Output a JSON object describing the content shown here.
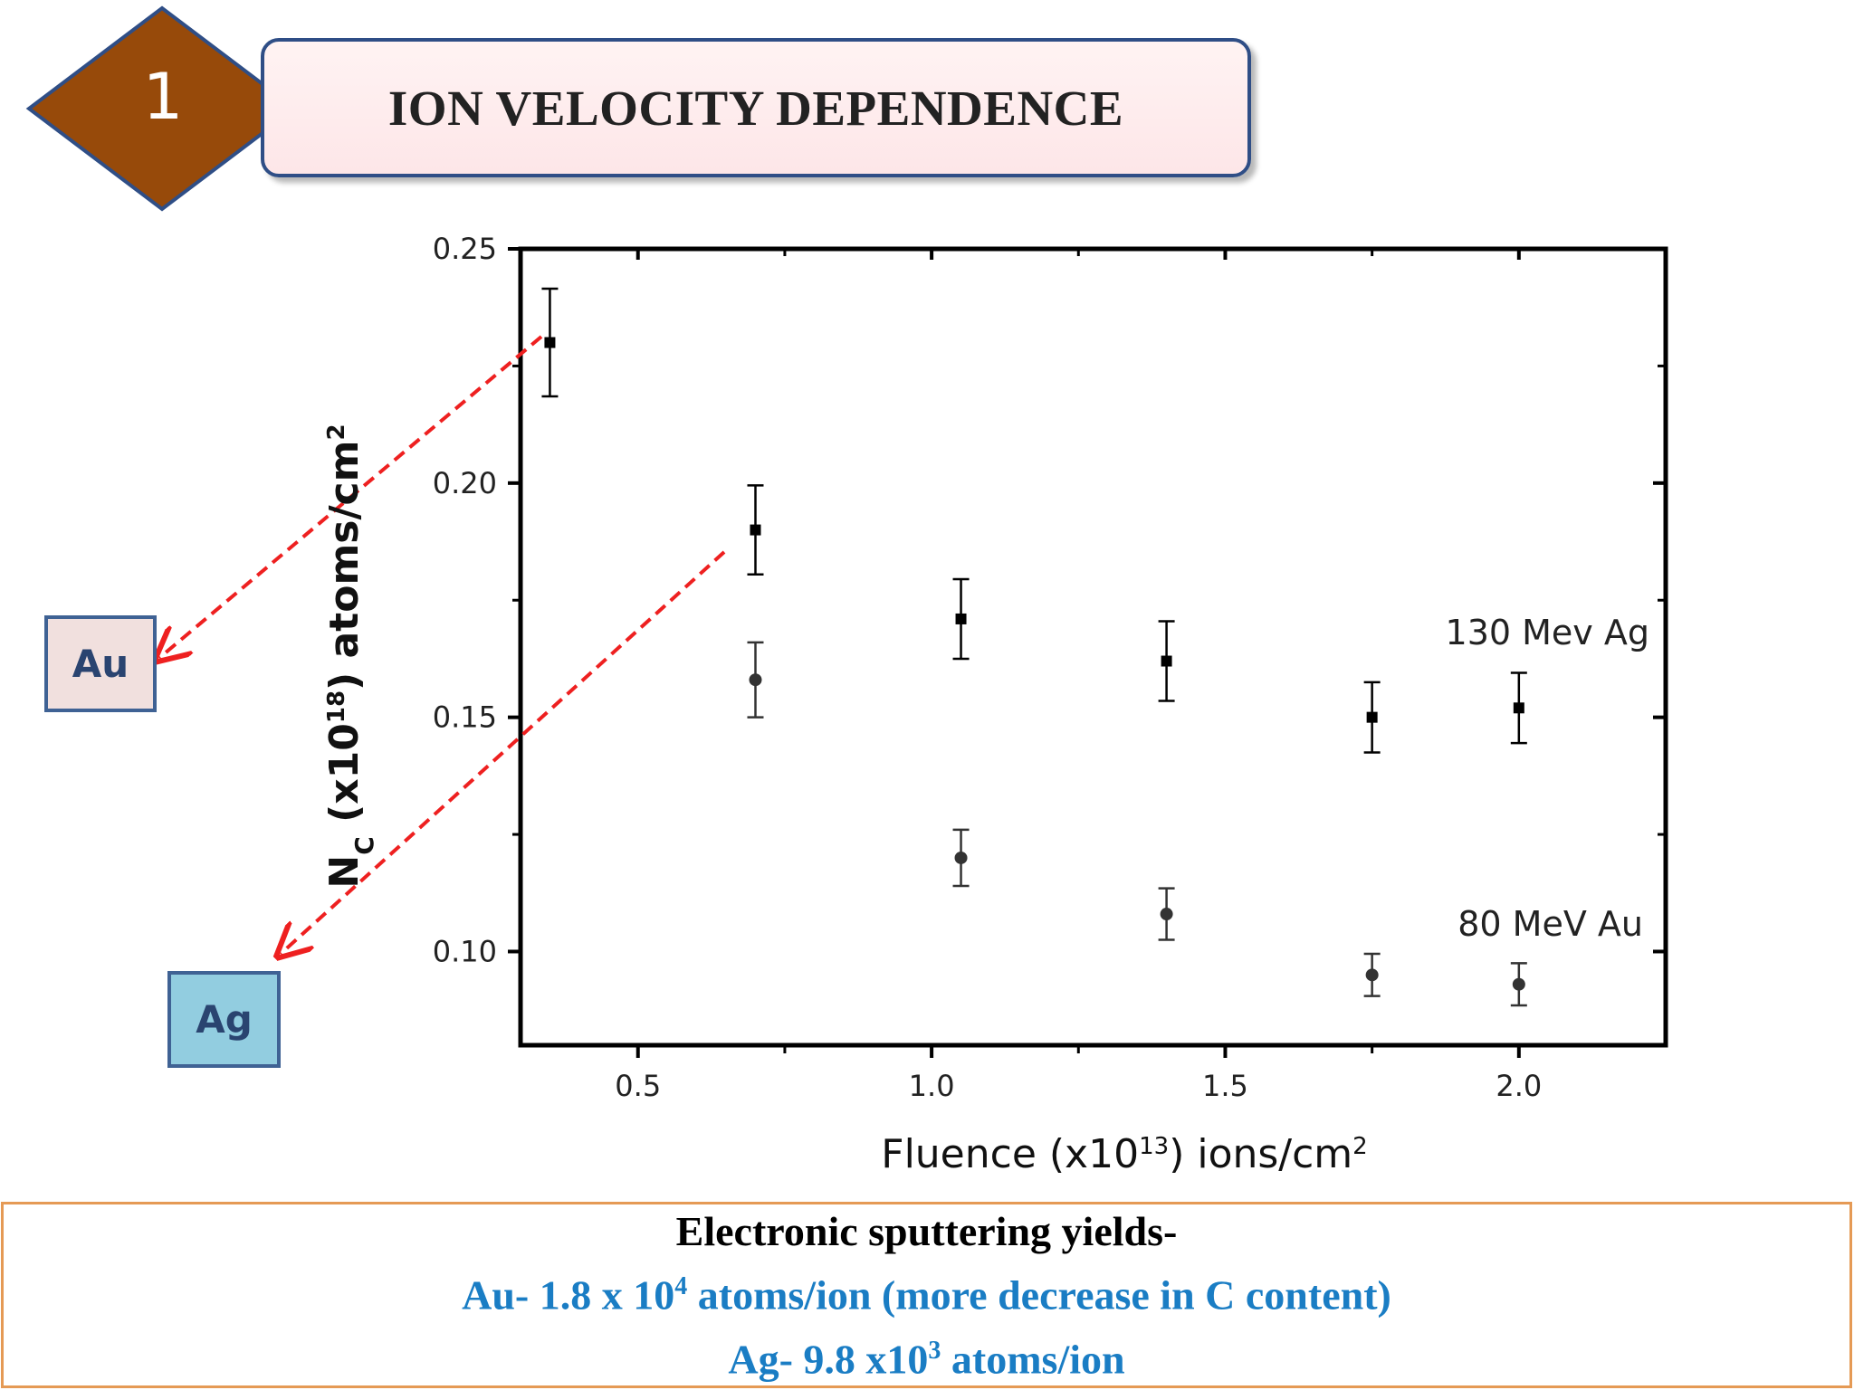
{
  "badge": {
    "number": "1",
    "color": "#974a0a"
  },
  "header": {
    "title": "ION VELOCITY DEPENDENCE"
  },
  "labels": {
    "au": "Au",
    "ag": "Ag"
  },
  "chart_data": {
    "type": "scatter",
    "title": "",
    "xlabel": {
      "text": "Fluence (x10",
      "sup": "13",
      "rest": ") ions/cm",
      "sup2": "2"
    },
    "ylabel": {
      "pre": "N",
      "sub": "C",
      "mid": " (x10",
      "sup": "18",
      "rest": ") atoms/cm",
      "sup2": "2"
    },
    "xlim": [
      0.3,
      2.25
    ],
    "ylim": [
      0.08,
      0.25
    ],
    "xticks": [
      {
        "v": 0.5,
        "label": "0.5"
      },
      {
        "v": 1.0,
        "label": "1.0"
      },
      {
        "v": 1.5,
        "label": "1.5"
      },
      {
        "v": 2.0,
        "label": "2.0"
      }
    ],
    "yticks": [
      {
        "v": 0.1,
        "label": "0.10"
      },
      {
        "v": 0.15,
        "label": "0.15"
      },
      {
        "v": 0.2,
        "label": "0.20"
      },
      {
        "v": 0.25,
        "label": "0.25"
      }
    ],
    "series": [
      {
        "name": "130 Mev Ag",
        "marker": "square",
        "color": "#000000",
        "points": [
          {
            "x": 0.35,
            "y": 0.23,
            "err": 0.0115
          },
          {
            "x": 0.7,
            "y": 0.19,
            "err": 0.0095
          },
          {
            "x": 1.05,
            "y": 0.171,
            "err": 0.0085
          },
          {
            "x": 1.4,
            "y": 0.162,
            "err": 0.0085
          },
          {
            "x": 1.75,
            "y": 0.15,
            "err": 0.0075
          },
          {
            "x": 2.0,
            "y": 0.152,
            "err": 0.0075
          }
        ]
      },
      {
        "name": "80 MeV Au",
        "marker": "circle",
        "color": "#333333",
        "points": [
          {
            "x": 0.7,
            "y": 0.158,
            "err": 0.008
          },
          {
            "x": 1.05,
            "y": 0.12,
            "err": 0.006
          },
          {
            "x": 1.4,
            "y": 0.108,
            "err": 0.0055
          },
          {
            "x": 1.75,
            "y": 0.095,
            "err": 0.0045
          },
          {
            "x": 2.0,
            "y": 0.093,
            "err": 0.0045
          }
        ]
      }
    ],
    "arrow_color": "#ee2020"
  },
  "footer": {
    "line1": "Electronic sputtering yields-",
    "line2_pre": "Au- 1.8 x 10",
    "line2_sup": "4",
    "line2_post": " atoms/ion (more decrease in C content)",
    "line3_pre": "Ag- 9.8 x10",
    "line3_sup": "3",
    "line3_post": " atoms/ion"
  }
}
